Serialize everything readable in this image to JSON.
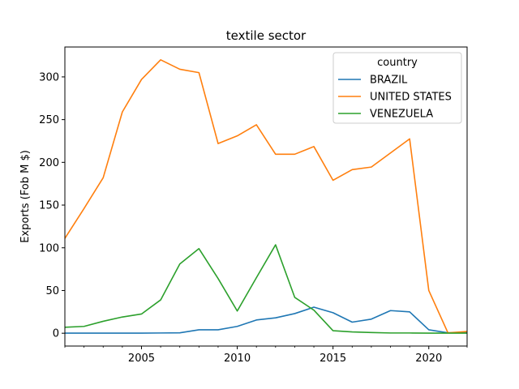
{
  "chart_data": {
    "type": "line",
    "title": "textile sector",
    "xlabel": "",
    "ylabel": "Exports (Fob M $)",
    "xlim": [
      2001,
      2022
    ],
    "ylim": [
      -15,
      335
    ],
    "xticks": [
      2005,
      2010,
      2015,
      2020
    ],
    "yticks": [
      0,
      50,
      100,
      150,
      200,
      250,
      300
    ],
    "grid": false,
    "legend": {
      "title": "country",
      "placement": "top-right"
    },
    "x": [
      2001,
      2002,
      2003,
      2004,
      2005,
      2006,
      2007,
      2008,
      2009,
      2010,
      2011,
      2012,
      2013,
      2014,
      2015,
      2016,
      2017,
      2018,
      2019,
      2020,
      2021,
      2022
    ],
    "series": [
      {
        "name": "BRAZIL",
        "color": "#1f77b4",
        "values": [
          0.1,
          0.1,
          0.1,
          0.1,
          0.1,
          0.3,
          0.5,
          4,
          4,
          8,
          15.5,
          18,
          23,
          30.5,
          24,
          13,
          16.5,
          26.5,
          25,
          4,
          0.5,
          1
        ]
      },
      {
        "name": "UNITED STATES",
        "color": "#ff7f0e",
        "values": [
          111,
          146,
          182,
          259,
          297,
          320,
          309,
          305,
          222,
          231,
          244,
          209.5,
          209.5,
          218.5,
          179,
          191.5,
          194.5,
          211,
          227.5,
          50,
          0.5,
          2
        ]
      },
      {
        "name": "VENEZUELA",
        "color": "#2ca02c",
        "values": [
          7,
          8,
          14,
          19,
          22.5,
          39,
          81,
          99,
          64,
          26,
          65,
          103.5,
          42,
          27,
          3,
          1.5,
          0.8,
          0.3,
          0.3,
          0.1,
          0.1,
          0.1
        ]
      }
    ]
  }
}
